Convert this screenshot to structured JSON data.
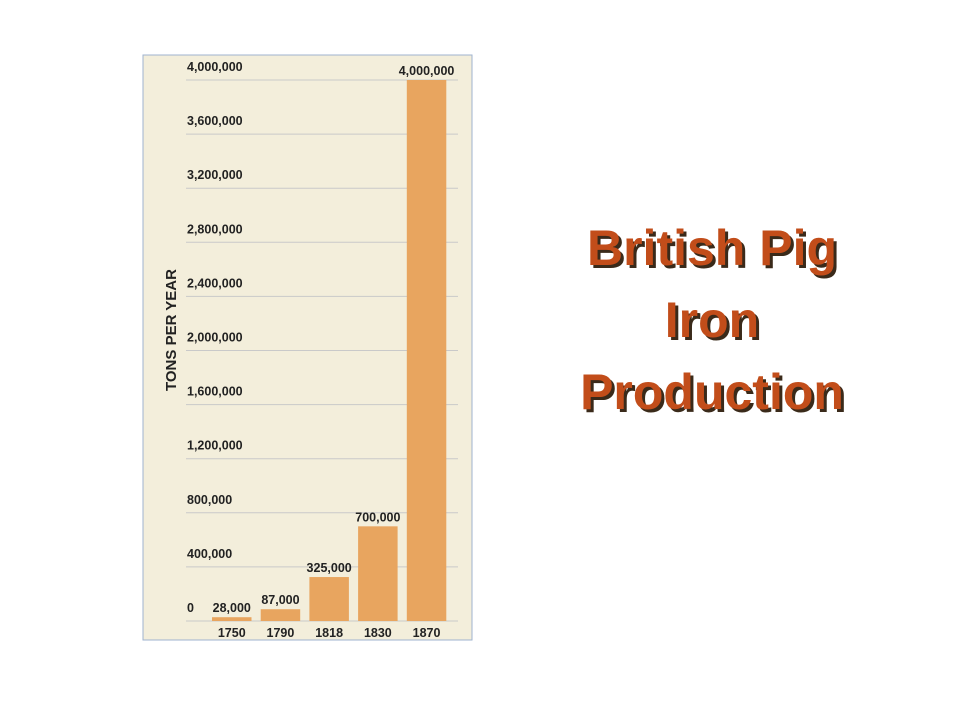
{
  "chart_data": {
    "type": "bar",
    "title": "British Pig Iron Production",
    "y_label": "TONS PER YEAR",
    "categories": [
      "1750",
      "1790",
      "1818",
      "1830",
      "1870"
    ],
    "values": [
      28000,
      87000,
      325000,
      700000,
      4000000
    ],
    "value_labels": [
      "28,000",
      "87,000",
      "325,000",
      "700,000",
      "4,000,000"
    ],
    "color": "#e8a55f",
    "ylim": [
      0,
      4000000
    ],
    "yticks": [
      0,
      {
        "value": 400000,
        "label": "400,000"
      },
      {
        "value": 800000,
        "label": "800,000"
      },
      {
        "value": 1200000,
        "label": "1,200,000"
      },
      {
        "value": 1600000,
        "label": "1,600,000"
      },
      {
        "value": 2000000,
        "label": "2,000,000"
      },
      {
        "value": 2400000,
        "label": "2,400,000"
      },
      {
        "value": 2800000,
        "label": "2,800,000"
      },
      {
        "value": 3200000,
        "label": "3,200,000"
      },
      {
        "value": 3600000,
        "label": "3,600,000"
      },
      {
        "value": 4000000,
        "label": "4,000,000"
      }
    ],
    "grid": true
  }
}
